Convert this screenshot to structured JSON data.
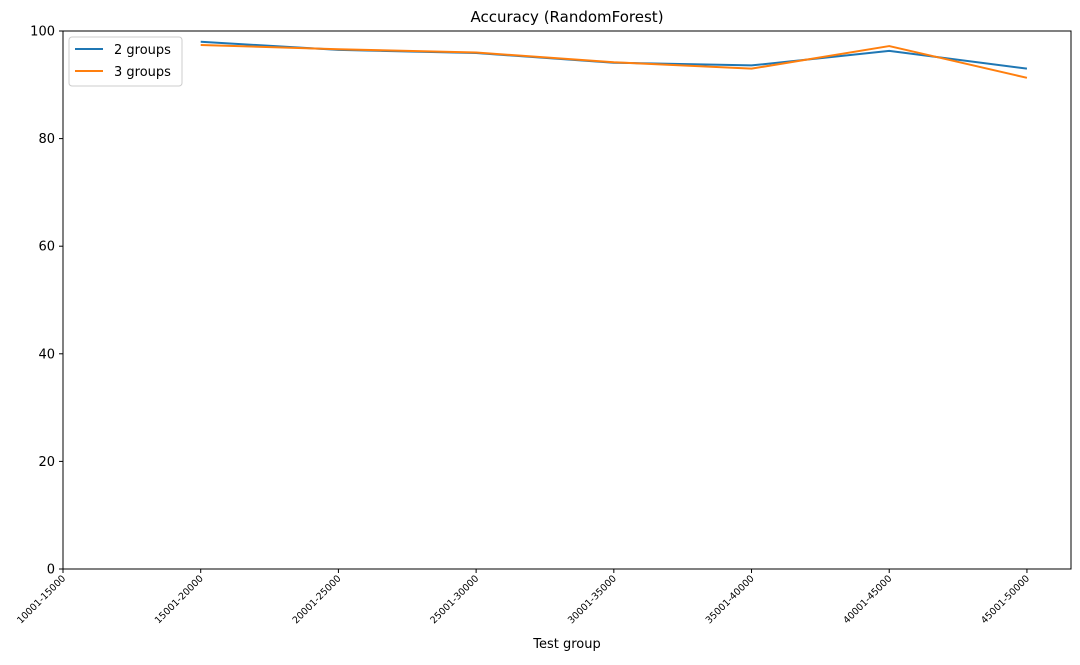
{
  "chart_data": {
    "type": "line",
    "title": "Accuracy (RandomForest)",
    "xlabel": "Test group",
    "ylabel": "",
    "categories": [
      "10001-15000",
      "15001-20000",
      "20001-25000",
      "25001-30000",
      "30001-35000",
      "35001-40000",
      "40001-45000",
      "45001-50000"
    ],
    "ylim": [
      0,
      100
    ],
    "yticks": [
      0,
      20,
      40,
      60,
      80,
      100
    ],
    "grid": false,
    "legend_position": "top-left",
    "series": [
      {
        "name": "2 groups",
        "color": "#1f77b4",
        "values": [
          null,
          98.0,
          96.5,
          95.9,
          94.1,
          93.6,
          96.3,
          93.0
        ]
      },
      {
        "name": "3 groups",
        "color": "#ff7f0e",
        "values": [
          null,
          97.4,
          96.6,
          96.0,
          94.2,
          93.0,
          97.2,
          91.3
        ]
      }
    ]
  }
}
